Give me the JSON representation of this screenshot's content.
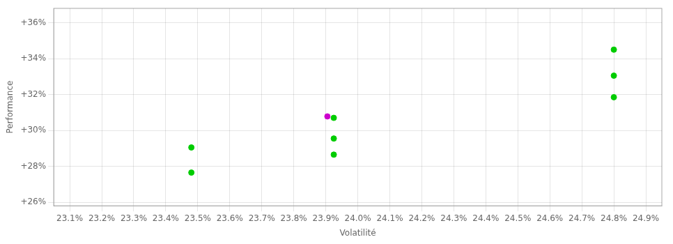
{
  "chart_data": {
    "type": "scatter",
    "xlabel": "Volatilité",
    "ylabel": "Performance",
    "x": [
      0.2348,
      0.2348,
      0.23925,
      0.23925,
      0.23925,
      0.23905,
      0.248,
      0.248,
      0.248
    ],
    "values": [
      0.2905,
      0.2765,
      0.307,
      0.2955,
      0.2865,
      0.3078,
      0.345,
      0.3305,
      0.3185
    ],
    "colors": [
      "#00cc00",
      "#00cc00",
      "#00cc00",
      "#00cc00",
      "#00cc00",
      "#cc00cc",
      "#00cc00",
      "#00cc00",
      "#00cc00"
    ],
    "xlim": [
      0.2305,
      0.2495
    ],
    "ylim": [
      0.258,
      0.368
    ],
    "xticks": [
      {
        "value": 0.231,
        "label": "23.1%"
      },
      {
        "value": 0.232,
        "label": "23.2%"
      },
      {
        "value": 0.233,
        "label": "23.3%"
      },
      {
        "value": 0.234,
        "label": "23.4%"
      },
      {
        "value": 0.235,
        "label": "23.5%"
      },
      {
        "value": 0.236,
        "label": "23.6%"
      },
      {
        "value": 0.237,
        "label": "23.7%"
      },
      {
        "value": 0.238,
        "label": "23.8%"
      },
      {
        "value": 0.239,
        "label": "23.9%"
      },
      {
        "value": 0.24,
        "label": "24.0%"
      },
      {
        "value": 0.241,
        "label": "24.1%"
      },
      {
        "value": 0.242,
        "label": "24.2%"
      },
      {
        "value": 0.243,
        "label": "24.3%"
      },
      {
        "value": 0.244,
        "label": "24.4%"
      },
      {
        "value": 0.245,
        "label": "24.5%"
      },
      {
        "value": 0.246,
        "label": "24.6%"
      },
      {
        "value": 0.247,
        "label": "24.7%"
      },
      {
        "value": 0.248,
        "label": "24.8%"
      },
      {
        "value": 0.249,
        "label": "24.9%"
      }
    ],
    "yticks": [
      {
        "value": 0.26,
        "label": "+26%"
      },
      {
        "value": 0.28,
        "label": "+28%"
      },
      {
        "value": 0.3,
        "label": "+30%"
      },
      {
        "value": 0.32,
        "label": "+32%"
      },
      {
        "value": 0.34,
        "label": "+34%"
      },
      {
        "value": 0.36,
        "label": "+36%"
      }
    ],
    "grid": true
  }
}
